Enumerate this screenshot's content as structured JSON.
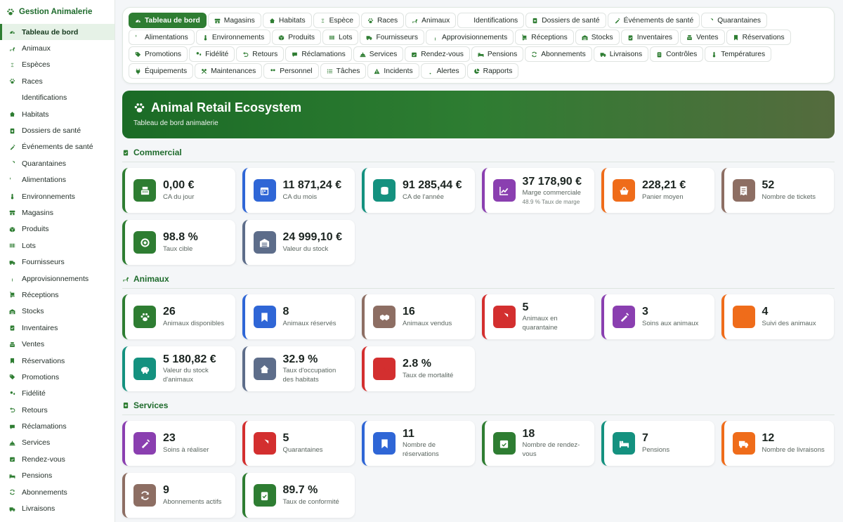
{
  "brand": "Gestion Animalerie",
  "sidebar": {
    "items": [
      {
        "label": "Tableau de bord",
        "icon": "dashboard-icon",
        "active": true
      },
      {
        "label": "Animaux",
        "icon": "dog-icon"
      },
      {
        "label": "Espèces",
        "icon": "dna-icon"
      },
      {
        "label": "Races",
        "icon": "paw-icon"
      },
      {
        "label": "Identifications",
        "icon": "fingerprint-icon"
      },
      {
        "label": "Habitats",
        "icon": "home-icon"
      },
      {
        "label": "Dossiers de santé",
        "icon": "medical-file-icon"
      },
      {
        "label": "Événements de santé",
        "icon": "syringe-icon"
      },
      {
        "label": "Quarantaines",
        "icon": "shield-icon"
      },
      {
        "label": "Alimentations",
        "icon": "utensils-icon"
      },
      {
        "label": "Environnements",
        "icon": "thermometer-icon"
      },
      {
        "label": "Magasins",
        "icon": "store-icon"
      },
      {
        "label": "Produits",
        "icon": "box-icon"
      },
      {
        "label": "Lots",
        "icon": "barcode-icon"
      },
      {
        "label": "Fournisseurs",
        "icon": "truck-icon"
      },
      {
        "label": "Approvisionnements",
        "icon": "seedling-icon"
      },
      {
        "label": "Réceptions",
        "icon": "dolly-icon"
      },
      {
        "label": "Stocks",
        "icon": "warehouse-icon"
      },
      {
        "label": "Inventaires",
        "icon": "clipboard-check-icon"
      },
      {
        "label": "Ventes",
        "icon": "cash-register-icon"
      },
      {
        "label": "Réservations",
        "icon": "bookmark-icon"
      },
      {
        "label": "Promotions",
        "icon": "tags-icon"
      },
      {
        "label": "Fidélité",
        "icon": "user-tag-icon"
      },
      {
        "label": "Retours",
        "icon": "undo-icon"
      },
      {
        "label": "Réclamations",
        "icon": "comment-icon"
      },
      {
        "label": "Services",
        "icon": "concierge-bell-icon"
      },
      {
        "label": "Rendez-vous",
        "icon": "calendar-check-icon"
      },
      {
        "label": "Pensions",
        "icon": "bed-icon"
      },
      {
        "label": "Abonnements",
        "icon": "sync-icon"
      },
      {
        "label": "Livraisons",
        "icon": "shipping-icon"
      }
    ]
  },
  "tabs": [
    {
      "label": "Tableau de bord",
      "icon": "dashboard-icon",
      "active": true
    },
    {
      "label": "Magasins",
      "icon": "store-icon"
    },
    {
      "label": "Habitats",
      "icon": "home-icon"
    },
    {
      "label": "Espèce",
      "icon": "dna-icon"
    },
    {
      "label": "Races",
      "icon": "paw-icon"
    },
    {
      "label": "Animaux",
      "icon": "dog-icon"
    },
    {
      "label": "Identifications",
      "icon": "fingerprint-icon"
    },
    {
      "label": "Dossiers de santé",
      "icon": "medical-file-icon"
    },
    {
      "label": "Événements de santé",
      "icon": "syringe-icon"
    },
    {
      "label": "Quarantaines",
      "icon": "shield-icon"
    },
    {
      "label": "Alimentations",
      "icon": "utensils-icon"
    },
    {
      "label": "Environnements",
      "icon": "thermometer-icon"
    },
    {
      "label": "Produits",
      "icon": "box-icon"
    },
    {
      "label": "Lots",
      "icon": "barcode-icon"
    },
    {
      "label": "Fournisseurs",
      "icon": "truck-icon"
    },
    {
      "label": "Approvisionnements",
      "icon": "seedling-icon"
    },
    {
      "label": "Réceptions",
      "icon": "dolly-icon"
    },
    {
      "label": "Stocks",
      "icon": "warehouse-icon"
    },
    {
      "label": "Inventaires",
      "icon": "clipboard-check-icon"
    },
    {
      "label": "Ventes",
      "icon": "cash-register-icon"
    },
    {
      "label": "Réservations",
      "icon": "bookmark-icon"
    },
    {
      "label": "Promotions",
      "icon": "tags-icon"
    },
    {
      "label": "Fidélité",
      "icon": "user-tag-icon"
    },
    {
      "label": "Retours",
      "icon": "undo-icon"
    },
    {
      "label": "Réclamations",
      "icon": "comment-icon"
    },
    {
      "label": "Services",
      "icon": "concierge-bell-icon"
    },
    {
      "label": "Rendez-vous",
      "icon": "calendar-check-icon"
    },
    {
      "label": "Pensions",
      "icon": "bed-icon"
    },
    {
      "label": "Abonnements",
      "icon": "sync-icon"
    },
    {
      "label": "Livraisons",
      "icon": "shipping-icon"
    },
    {
      "label": "Contrôles",
      "icon": "clipboard-icon"
    },
    {
      "label": "Températures",
      "icon": "thermometer-icon"
    },
    {
      "label": "Équipements",
      "icon": "plug-icon"
    },
    {
      "label": "Maintenances",
      "icon": "tools-icon"
    },
    {
      "label": "Personnel",
      "icon": "users-icon"
    },
    {
      "label": "Tâches",
      "icon": "list-icon"
    },
    {
      "label": "Incidents",
      "icon": "warning-icon"
    },
    {
      "label": "Alertes",
      "icon": "bell-icon"
    },
    {
      "label": "Rapports",
      "icon": "pie-chart-icon"
    }
  ],
  "hero": {
    "title": "Animal Retail Ecosystem",
    "subtitle": "Tableau de bord animalerie",
    "icon": "paw-icon"
  },
  "sections": [
    {
      "title": "Commercial",
      "icon": "clipboard-check-icon",
      "cards": [
        {
          "value": "0,00 €",
          "label": "CA du jour",
          "icon": "cash-register-icon",
          "color": "green"
        },
        {
          "value": "11 871,24 €",
          "label": "CA du mois",
          "icon": "calendar-icon",
          "color": "blue"
        },
        {
          "value": "91 285,44 €",
          "label": "CA de l'année",
          "icon": "coins-icon",
          "color": "teal"
        },
        {
          "value": "37 178,90 €",
          "label": "Marge commerciale",
          "sub": "48.9 % Taux de marge",
          "icon": "chart-line-icon",
          "color": "purple"
        },
        {
          "value": "228,21 €",
          "label": "Panier moyen",
          "icon": "basket-icon",
          "color": "orange"
        },
        {
          "value": "52",
          "label": "Nombre de tickets",
          "icon": "receipt-icon",
          "color": "brown"
        },
        {
          "value": "98.8 %",
          "label": "Taux cible",
          "icon": "target-icon",
          "color": "green"
        },
        {
          "value": "24 999,10 €",
          "label": "Valeur du stock",
          "icon": "warehouse-icon",
          "color": "slate"
        }
      ]
    },
    {
      "title": "Animaux",
      "icon": "dog-icon",
      "cards": [
        {
          "value": "26",
          "label": "Animaux disponibles",
          "icon": "paw-icon",
          "color": "green"
        },
        {
          "value": "8",
          "label": "Animaux réservés",
          "icon": "bookmark-icon",
          "color": "blue"
        },
        {
          "value": "16",
          "label": "Animaux vendus",
          "icon": "handshake-icon",
          "color": "brown"
        },
        {
          "value": "5",
          "label": "Animaux en quarantaine",
          "icon": "shield-icon",
          "color": "red"
        },
        {
          "value": "3",
          "label": "Soins aux animaux",
          "icon": "syringe-icon",
          "color": "purple"
        },
        {
          "value": "4",
          "label": "Suivi des animaux",
          "icon": "eye-icon",
          "color": "orange"
        },
        {
          "value": "5 180,82 €",
          "label": "Valeur du stock d'animaux",
          "icon": "piggy-bank-icon",
          "color": "teal"
        },
        {
          "value": "32.9 %",
          "label": "Taux d'occupation des habitats",
          "icon": "home-icon",
          "color": "slate"
        },
        {
          "value": "2.8 %",
          "label": "Taux de mortalité",
          "icon": "heartbeat-icon",
          "color": "red"
        }
      ]
    },
    {
      "title": "Services",
      "icon": "medical-file-icon",
      "cards": [
        {
          "value": "23",
          "label": "Soins à réaliser",
          "icon": "syringe-icon",
          "color": "purple"
        },
        {
          "value": "5",
          "label": "Quarantaines",
          "icon": "shield-icon",
          "color": "red"
        },
        {
          "value": "11",
          "label": "Nombre de réservations",
          "icon": "bookmark-icon",
          "color": "blue"
        },
        {
          "value": "18",
          "label": "Nombre de rendez-vous",
          "icon": "calendar-check-icon",
          "color": "green"
        },
        {
          "value": "7",
          "label": "Pensions",
          "icon": "bed-icon",
          "color": "teal"
        },
        {
          "value": "12",
          "label": "Nombre de livraisons",
          "icon": "shipping-icon",
          "color": "orange"
        },
        {
          "value": "9",
          "label": "Abonnements actifs",
          "icon": "sync-icon",
          "color": "brown"
        },
        {
          "value": "89.7 %",
          "label": "Taux de conformité",
          "icon": "clipboard-check-icon",
          "color": "green"
        }
      ]
    }
  ]
}
